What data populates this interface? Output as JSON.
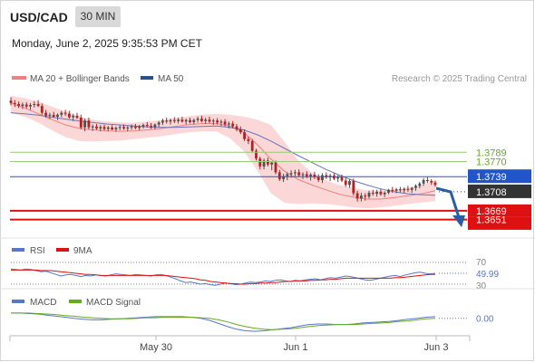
{
  "header": {
    "symbol": "USD/CAD",
    "timeframe": "30 MIN",
    "datetime": "Monday, June 2, 2025 9:35:53 PM CET"
  },
  "legend": {
    "ma20_label": "MA 20 + Bollinger Bands",
    "ma50_label": "MA 50",
    "credit": "Research © 2025 Trading Central"
  },
  "colors": {
    "bollinger_fill": "#fbd0d0",
    "ma20": "#f08080",
    "ma50": "#6677bb",
    "candle_up": "#4f4f4f",
    "candle_down": "#b22222",
    "support": "#dd1111",
    "pivot": "#2255cc",
    "resistance": "#99cc77",
    "rsi": "#5577cc",
    "rsi_ma": "#dd1111",
    "macd": "#5577cc",
    "macd_signal": "#66aa22",
    "arrow": "#2b5ea0"
  },
  "chart_data": [
    {
      "type": "line",
      "title": "",
      "xlabel": "",
      "ylabel": "",
      "ylim": [
        1.3615,
        1.3925
      ],
      "x_ticks": [
        "May 30",
        "Jun 1",
        "Jun 3"
      ],
      "levels": {
        "resistance": [
          1.3789,
          1.377
        ],
        "pivot": 1.3739,
        "last": 1.3708,
        "support": [
          1.3669,
          1.3651
        ]
      },
      "level_labels": {
        "r1": "1.3789",
        "r2": "1.3770",
        "pivot": "1.3739",
        "last": "1.3708",
        "s1": "1.3669",
        "s2": "1.3651"
      },
      "forecast_arrow": "down",
      "series": [
        {
          "name": "MA 20 + Bollinger Bands",
          "values": [
            1.389,
            1.388,
            1.3868,
            1.3856,
            1.3845,
            1.3838,
            1.3835,
            1.3833,
            1.3832,
            1.3833,
            1.3835,
            1.3838,
            1.3842,
            1.3846,
            1.3848,
            1.3848,
            1.3843,
            1.383,
            1.3805,
            1.3775,
            1.375,
            1.3733,
            1.3722,
            1.3712,
            1.3703,
            1.3697,
            1.3693,
            1.3693,
            1.3696,
            1.37,
            1.3704,
            1.371
          ]
        },
        {
          "name": "MA 50",
          "values": [
            1.387,
            1.3868,
            1.3865,
            1.3861,
            1.3857,
            1.3853,
            1.385,
            1.3847,
            1.3845,
            1.3843,
            1.3841,
            1.384,
            1.384,
            1.3841,
            1.3842,
            1.3843,
            1.384,
            1.3835,
            1.3825,
            1.3812,
            1.3797,
            1.3782,
            1.3768,
            1.3754,
            1.3742,
            1.3731,
            1.3722,
            1.3714,
            1.3708,
            1.3704,
            1.3702,
            1.3701
          ]
        },
        {
          "name": "Bollinger Upper",
          "values": [
            1.3905,
            1.39,
            1.3893,
            1.3883,
            1.3872,
            1.3862,
            1.3856,
            1.3852,
            1.385,
            1.385,
            1.3852,
            1.3855,
            1.3859,
            1.3863,
            1.3866,
            1.3868,
            1.3866,
            1.3862,
            1.3856,
            1.3845,
            1.381,
            1.3772,
            1.3747,
            1.3732,
            1.3722,
            1.3716,
            1.3711,
            1.371,
            1.3712,
            1.3716,
            1.3722,
            1.3731
          ]
        },
        {
          "name": "Bollinger Lower",
          "values": [
            1.387,
            1.3862,
            1.385,
            1.3834,
            1.382,
            1.3812,
            1.3811,
            1.3812,
            1.3813,
            1.3816,
            1.3819,
            1.3822,
            1.3826,
            1.383,
            1.3832,
            1.3832,
            1.3818,
            1.3792,
            1.3752,
            1.3705,
            1.3685,
            1.3683,
            1.3684,
            1.3683,
            1.368,
            1.3676,
            1.3674,
            1.3676,
            1.3679,
            1.3683,
            1.3686,
            1.3689
          ]
        }
      ],
      "candles": [
        [
          1.3895,
          1.3902,
          1.3885,
          1.389
        ],
        [
          1.389,
          1.3896,
          1.3882,
          1.3888
        ],
        [
          1.3888,
          1.3893,
          1.388,
          1.3884
        ],
        [
          1.3884,
          1.3891,
          1.3878,
          1.3887
        ],
        [
          1.3887,
          1.3892,
          1.3879,
          1.3883
        ],
        [
          1.3883,
          1.389,
          1.3876,
          1.3886
        ],
        [
          1.3886,
          1.3894,
          1.3881,
          1.3888
        ],
        [
          1.3888,
          1.3896,
          1.3882,
          1.3884
        ],
        [
          1.3884,
          1.3889,
          1.3866,
          1.387
        ],
        [
          1.387,
          1.3876,
          1.386,
          1.3864
        ],
        [
          1.3864,
          1.387,
          1.3857,
          1.3866
        ],
        [
          1.3866,
          1.3872,
          1.386,
          1.3862
        ],
        [
          1.3862,
          1.3869,
          1.3855,
          1.3866
        ],
        [
          1.3866,
          1.3874,
          1.3861,
          1.387
        ],
        [
          1.387,
          1.3876,
          1.3864,
          1.3868
        ],
        [
          1.3868,
          1.3874,
          1.3858,
          1.3861
        ],
        [
          1.3861,
          1.3868,
          1.3853,
          1.3864
        ],
        [
          1.3864,
          1.387,
          1.3857,
          1.386
        ],
        [
          1.386,
          1.3866,
          1.3836,
          1.384
        ],
        [
          1.384,
          1.3858,
          1.3832,
          1.3854
        ],
        [
          1.3854,
          1.386,
          1.3836,
          1.384
        ],
        [
          1.384,
          1.3846,
          1.3833,
          1.3842
        ],
        [
          1.3842,
          1.3847,
          1.3835,
          1.3838
        ],
        [
          1.3838,
          1.3845,
          1.3832,
          1.3841
        ],
        [
          1.3841,
          1.3846,
          1.3834,
          1.3837
        ],
        [
          1.3837,
          1.3843,
          1.3832,
          1.384
        ],
        [
          1.384,
          1.3845,
          1.3834,
          1.3836
        ],
        [
          1.3836,
          1.3842,
          1.3831,
          1.3839
        ],
        [
          1.3839,
          1.3844,
          1.3834,
          1.3841
        ],
        [
          1.3841,
          1.3846,
          1.3835,
          1.3838
        ],
        [
          1.3838,
          1.3843,
          1.3832,
          1.384
        ],
        [
          1.384,
          1.3846,
          1.3835,
          1.3842
        ],
        [
          1.3842,
          1.3847,
          1.3836,
          1.3839
        ],
        [
          1.3839,
          1.3845,
          1.3834,
          1.3842
        ],
        [
          1.3842,
          1.3848,
          1.3838,
          1.3845
        ],
        [
          1.3845,
          1.3851,
          1.384,
          1.3843
        ],
        [
          1.3843,
          1.3849,
          1.3837,
          1.384
        ],
        [
          1.384,
          1.3848,
          1.3836,
          1.3846
        ],
        [
          1.3846,
          1.3853,
          1.3841,
          1.385
        ],
        [
          1.385,
          1.3858,
          1.3845,
          1.3854
        ],
        [
          1.3854,
          1.386,
          1.3848,
          1.3852
        ],
        [
          1.3852,
          1.3858,
          1.3846,
          1.3855
        ],
        [
          1.3855,
          1.3861,
          1.3849,
          1.3853
        ],
        [
          1.3853,
          1.386,
          1.3848,
          1.3856
        ],
        [
          1.3856,
          1.3862,
          1.385,
          1.3852
        ],
        [
          1.3852,
          1.3858,
          1.3846,
          1.3855
        ],
        [
          1.3855,
          1.386,
          1.3848,
          1.3851
        ],
        [
          1.3851,
          1.3858,
          1.3846,
          1.3855
        ],
        [
          1.3855,
          1.3862,
          1.385,
          1.3858
        ],
        [
          1.3858,
          1.3864,
          1.385,
          1.3853
        ],
        [
          1.3853,
          1.386,
          1.3847,
          1.3856
        ],
        [
          1.3856,
          1.3862,
          1.3849,
          1.3852
        ],
        [
          1.3852,
          1.3858,
          1.3845,
          1.3854
        ],
        [
          1.3854,
          1.3859,
          1.3846,
          1.385
        ],
        [
          1.385,
          1.3856,
          1.3843,
          1.3852
        ],
        [
          1.3852,
          1.3857,
          1.3842,
          1.3846
        ],
        [
          1.3846,
          1.3852,
          1.3838,
          1.3848
        ],
        [
          1.3848,
          1.3853,
          1.3838,
          1.3842
        ],
        [
          1.3842,
          1.3847,
          1.3832,
          1.3836
        ],
        [
          1.3836,
          1.3842,
          1.3826,
          1.383
        ],
        [
          1.383,
          1.3836,
          1.3812,
          1.3816
        ],
        [
          1.3816,
          1.3821,
          1.3806,
          1.3812
        ],
        [
          1.3812,
          1.3816,
          1.3788,
          1.3792
        ],
        [
          1.3792,
          1.3796,
          1.3772,
          1.3776
        ],
        [
          1.3776,
          1.378,
          1.3754,
          1.376
        ],
        [
          1.376,
          1.3776,
          1.3754,
          1.3772
        ],
        [
          1.3772,
          1.3778,
          1.376,
          1.3764
        ],
        [
          1.3764,
          1.377,
          1.3752,
          1.3768
        ],
        [
          1.3768,
          1.3772,
          1.3744,
          1.3748
        ],
        [
          1.3748,
          1.3753,
          1.373,
          1.3734
        ],
        [
          1.3734,
          1.3745,
          1.3728,
          1.374
        ],
        [
          1.374,
          1.3748,
          1.3732,
          1.3744
        ],
        [
          1.3744,
          1.3752,
          1.3737,
          1.3746
        ],
        [
          1.3746,
          1.3753,
          1.374,
          1.3748
        ],
        [
          1.3748,
          1.3754,
          1.3738,
          1.3742
        ],
        [
          1.3742,
          1.3748,
          1.3734,
          1.3744
        ],
        [
          1.3744,
          1.375,
          1.3736,
          1.374
        ],
        [
          1.374,
          1.3746,
          1.3731,
          1.3743
        ],
        [
          1.3743,
          1.3749,
          1.3734,
          1.3738
        ],
        [
          1.3738,
          1.3744,
          1.3728,
          1.3732
        ],
        [
          1.3732,
          1.3746,
          1.3726,
          1.3742
        ],
        [
          1.3742,
          1.3748,
          1.3734,
          1.3738
        ],
        [
          1.3738,
          1.3745,
          1.373,
          1.3741
        ],
        [
          1.3741,
          1.3746,
          1.3732,
          1.3735
        ],
        [
          1.3735,
          1.3742,
          1.3728,
          1.3738
        ],
        [
          1.3738,
          1.3743,
          1.3728,
          1.3731
        ],
        [
          1.3731,
          1.3736,
          1.3718,
          1.3722
        ],
        [
          1.3722,
          1.3734,
          1.3716,
          1.373
        ],
        [
          1.373,
          1.3735,
          1.37,
          1.3705
        ],
        [
          1.3705,
          1.371,
          1.3688,
          1.3694
        ],
        [
          1.3694,
          1.3706,
          1.3688,
          1.37
        ],
        [
          1.37,
          1.3705,
          1.369,
          1.3698
        ],
        [
          1.3698,
          1.371,
          1.3694,
          1.3706
        ],
        [
          1.3706,
          1.3712,
          1.37,
          1.3704
        ],
        [
          1.3704,
          1.3712,
          1.3698,
          1.3708
        ],
        [
          1.3708,
          1.3714,
          1.37,
          1.3703
        ],
        [
          1.3703,
          1.3709,
          1.3697,
          1.3706
        ],
        [
          1.3706,
          1.3714,
          1.3703,
          1.3712
        ],
        [
          1.3712,
          1.3718,
          1.3706,
          1.371
        ],
        [
          1.371,
          1.3716,
          1.3705,
          1.3713
        ],
        [
          1.3713,
          1.3718,
          1.3707,
          1.3711
        ],
        [
          1.3711,
          1.3717,
          1.3706,
          1.3714
        ],
        [
          1.3714,
          1.372,
          1.3708,
          1.3712
        ],
        [
          1.3712,
          1.3718,
          1.3706,
          1.3716
        ],
        [
          1.3716,
          1.3723,
          1.371,
          1.372
        ],
        [
          1.372,
          1.3728,
          1.3715,
          1.3725
        ],
        [
          1.3725,
          1.3736,
          1.372,
          1.3732
        ],
        [
          1.3732,
          1.3738,
          1.3726,
          1.373
        ],
        [
          1.373,
          1.3734,
          1.3722,
          1.3727
        ],
        [
          1.3727,
          1.3731,
          1.3718,
          1.3722
        ]
      ]
    },
    {
      "type": "line",
      "title": "",
      "legend": [
        "RSI",
        "9MA"
      ],
      "ylim": [
        25,
        75
      ],
      "y_ticks": [
        70,
        30
      ],
      "y_tick_labels": [
        "70",
        "30"
      ],
      "last_value": "49.99",
      "series": [
        {
          "name": "RSI",
          "values": [
            58,
            57,
            56,
            58,
            57,
            55,
            53,
            54,
            51,
            48,
            45,
            47,
            48,
            46,
            44,
            46,
            45,
            47,
            46,
            45,
            47,
            49,
            48,
            47,
            46,
            48,
            47,
            46,
            45,
            47,
            48,
            46,
            43,
            40,
            36,
            33,
            34,
            32,
            30,
            31,
            29,
            28,
            30,
            32,
            31,
            29,
            30,
            32,
            34,
            33,
            34,
            36,
            35,
            37,
            38,
            36,
            35,
            37,
            36,
            38,
            39,
            40,
            38,
            40,
            42,
            41,
            43,
            45,
            44,
            42,
            40,
            38,
            37,
            39,
            41,
            43,
            45,
            46,
            44,
            47,
            49,
            51,
            52,
            50,
            49,
            50
          ]
        },
        {
          "name": "9MA",
          "values": [
            56,
            56,
            56,
            56,
            56,
            56,
            55,
            55,
            55,
            54,
            53,
            52,
            51,
            50,
            49,
            48,
            48,
            47,
            46,
            46,
            46,
            46,
            46,
            46,
            46,
            46,
            46,
            46,
            46,
            46,
            46,
            46,
            45,
            44,
            43,
            42,
            41,
            40,
            38,
            37,
            35,
            34,
            33,
            32,
            31,
            31,
            30,
            30,
            31,
            31,
            32,
            32,
            33,
            33,
            34,
            35,
            35,
            36,
            36,
            36,
            37,
            37,
            38,
            38,
            39,
            39,
            40,
            41,
            41,
            41,
            41,
            41,
            41,
            41,
            41,
            41,
            41,
            42,
            42,
            43,
            44,
            45,
            46,
            47,
            48,
            48
          ]
        }
      ]
    },
    {
      "type": "line",
      "title": "",
      "legend": [
        "MACD",
        "MACD Signal"
      ],
      "ylim": [
        -0.003,
        0.0015
      ],
      "last_value": "0.00",
      "series": [
        {
          "name": "MACD",
          "values": [
            0.001,
            0.001,
            0.0009,
            0.0008,
            0.0006,
            0.0004,
            0.0002,
            0.0,
            -0.0002,
            -0.0003,
            -0.0003,
            -0.0002,
            -0.0001,
            0.0,
            0.0001,
            0.0002,
            0.0003,
            0.0003,
            0.0003,
            0.0003,
            0.0002,
            0.0,
            -0.0004,
            -0.001,
            -0.0016,
            -0.0021,
            -0.0024,
            -0.0025,
            -0.0024,
            -0.0022,
            -0.002,
            -0.0018,
            -0.0015,
            -0.0012,
            -0.0011,
            -0.0011,
            -0.0012,
            -0.0012,
            -0.0011,
            -0.0009,
            -0.0008,
            -0.0007,
            -0.0006,
            -0.0004,
            -0.0002,
            0.0,
            0.0002,
            0.0003
          ]
        },
        {
          "name": "MACD Signal",
          "values": [
            0.001,
            0.001,
            0.001,
            0.0009,
            0.0008,
            0.0007,
            0.0005,
            0.0004,
            0.0002,
            0.0001,
            0.0,
            -0.0001,
            -0.0001,
            -0.0001,
            0.0,
            0.0001,
            0.0001,
            0.0002,
            0.0002,
            0.0002,
            0.0002,
            0.0001,
            0.0,
            -0.0003,
            -0.0007,
            -0.0012,
            -0.0016,
            -0.0019,
            -0.0021,
            -0.0022,
            -0.0021,
            -0.002,
            -0.0018,
            -0.0016,
            -0.0014,
            -0.0013,
            -0.0012,
            -0.0012,
            -0.0012,
            -0.0011,
            -0.001,
            -0.0009,
            -0.0008,
            -0.0006,
            -0.0005,
            -0.0003,
            -0.0001,
            0.0
          ]
        }
      ]
    }
  ]
}
